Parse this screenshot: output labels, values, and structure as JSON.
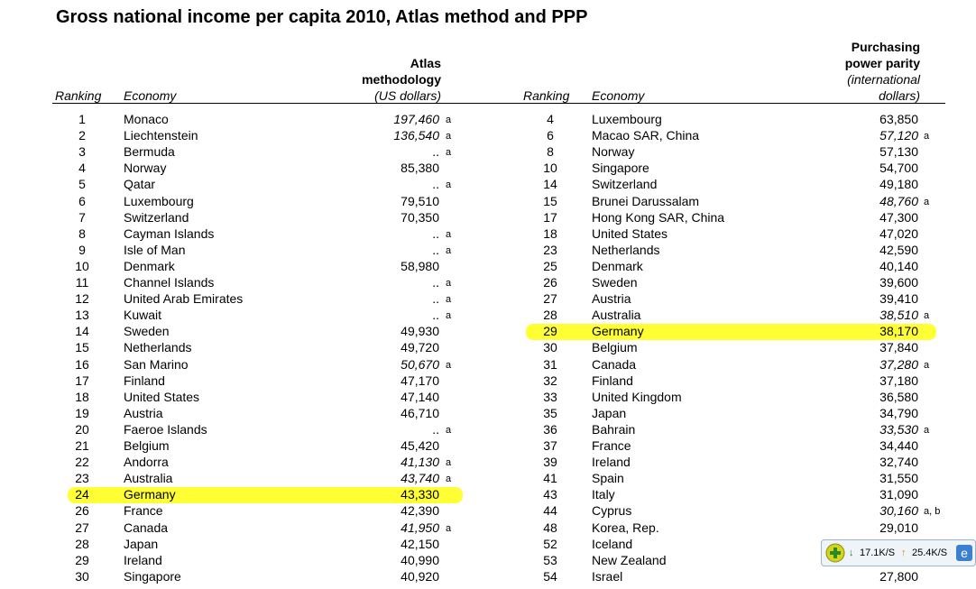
{
  "title": "Gross national income per capita 2010, Atlas method and PPP",
  "left": {
    "headers": {
      "ranking": "Ranking",
      "economy": "Economy",
      "value": [
        "Atlas",
        "methodology",
        "(US dollars)"
      ]
    },
    "rows": [
      {
        "ranking": 1,
        "economy": "Monaco",
        "value": "197,460",
        "note": "a",
        "italic": true
      },
      {
        "ranking": 2,
        "economy": "Liechtenstein",
        "value": "136,540",
        "note": "a",
        "italic": true
      },
      {
        "ranking": 3,
        "economy": "Bermuda",
        "value": "..",
        "note": "a"
      },
      {
        "ranking": 4,
        "economy": "Norway",
        "value": "85,380"
      },
      {
        "ranking": 5,
        "economy": "Qatar",
        "value": "..",
        "note": "a"
      },
      {
        "ranking": 6,
        "economy": "Luxembourg",
        "value": "79,510"
      },
      {
        "ranking": 7,
        "economy": "Switzerland",
        "value": "70,350"
      },
      {
        "ranking": 8,
        "economy": "Cayman Islands",
        "value": "..",
        "note": "a"
      },
      {
        "ranking": 9,
        "economy": "Isle of Man",
        "value": "..",
        "note": "a"
      },
      {
        "ranking": 10,
        "economy": "Denmark",
        "value": "58,980"
      },
      {
        "ranking": 11,
        "economy": "Channel Islands",
        "value": "..",
        "note": "a"
      },
      {
        "ranking": 12,
        "economy": "United Arab Emirates",
        "value": "..",
        "note": "a"
      },
      {
        "ranking": 13,
        "economy": "Kuwait",
        "value": "..",
        "note": "a"
      },
      {
        "ranking": 14,
        "economy": "Sweden",
        "value": "49,930"
      },
      {
        "ranking": 15,
        "economy": "Netherlands",
        "value": "49,720"
      },
      {
        "ranking": 16,
        "economy": "San Marino",
        "value": "50,670",
        "note": "a",
        "italic": true
      },
      {
        "ranking": 17,
        "economy": "Finland",
        "value": "47,170"
      },
      {
        "ranking": 18,
        "economy": "United States",
        "value": "47,140"
      },
      {
        "ranking": 19,
        "economy": "Austria",
        "value": "46,710"
      },
      {
        "ranking": 20,
        "economy": "Faeroe Islands",
        "value": "..",
        "note": "a"
      },
      {
        "ranking": 21,
        "economy": "Belgium",
        "value": "45,420"
      },
      {
        "ranking": 22,
        "economy": "Andorra",
        "value": "41,130",
        "note": "a",
        "italic": true
      },
      {
        "ranking": 23,
        "economy": "Australia",
        "value": "43,740",
        "note": "a",
        "italic": true
      },
      {
        "ranking": 24,
        "economy": "Germany",
        "value": "43,330",
        "highlight": true
      },
      {
        "ranking": 26,
        "economy": "France",
        "value": "42,390"
      },
      {
        "ranking": 27,
        "economy": "Canada",
        "value": "41,950",
        "note": "a",
        "italic": true
      },
      {
        "ranking": 28,
        "economy": "Japan",
        "value": "42,150"
      },
      {
        "ranking": 29,
        "economy": "Ireland",
        "value": "40,990"
      },
      {
        "ranking": 30,
        "economy": "Singapore",
        "value": "40,920"
      }
    ]
  },
  "right": {
    "headers": {
      "ranking": "Ranking",
      "economy": "Economy",
      "value": [
        "Purchasing",
        "power parity",
        "(international",
        "dollars)"
      ]
    },
    "rows": [
      {
        "ranking": 4,
        "economy": "Luxembourg",
        "value": "63,850"
      },
      {
        "ranking": 6,
        "economy": "Macao SAR, China",
        "value": "57,120",
        "note": "a",
        "italic": true
      },
      {
        "ranking": 8,
        "economy": "Norway",
        "value": "57,130"
      },
      {
        "ranking": 10,
        "economy": "Singapore",
        "value": "54,700"
      },
      {
        "ranking": 14,
        "economy": "Switzerland",
        "value": "49,180"
      },
      {
        "ranking": 15,
        "economy": "Brunei Darussalam",
        "value": "48,760",
        "note": "a",
        "italic": true
      },
      {
        "ranking": 17,
        "economy": "Hong Kong SAR, China",
        "value": "47,300"
      },
      {
        "ranking": 18,
        "economy": "United States",
        "value": "47,020"
      },
      {
        "ranking": 23,
        "economy": "Netherlands",
        "value": "42,590"
      },
      {
        "ranking": 25,
        "economy": "Denmark",
        "value": "40,140"
      },
      {
        "ranking": 26,
        "economy": "Sweden",
        "value": "39,600"
      },
      {
        "ranking": 27,
        "economy": "Austria",
        "value": "39,410"
      },
      {
        "ranking": 28,
        "economy": "Australia",
        "value": "38,510",
        "note": "a",
        "italic": true
      },
      {
        "ranking": 29,
        "economy": "Germany",
        "value": "38,170",
        "highlight": true
      },
      {
        "ranking": 30,
        "economy": "Belgium",
        "value": "37,840"
      },
      {
        "ranking": 31,
        "economy": "Canada",
        "value": "37,280",
        "note": "a",
        "italic": true
      },
      {
        "ranking": 32,
        "economy": "Finland",
        "value": "37,180"
      },
      {
        "ranking": 33,
        "economy": "United Kingdom",
        "value": "36,580"
      },
      {
        "ranking": 35,
        "economy": "Japan",
        "value": "34,790"
      },
      {
        "ranking": 36,
        "economy": "Bahrain",
        "value": "33,530",
        "note": "a",
        "italic": true
      },
      {
        "ranking": 37,
        "economy": "France",
        "value": "34,440"
      },
      {
        "ranking": 39,
        "economy": "Ireland",
        "value": "32,740"
      },
      {
        "ranking": 41,
        "economy": "Spain",
        "value": "31,550"
      },
      {
        "ranking": 43,
        "economy": "Italy",
        "value": "31,090"
      },
      {
        "ranking": 44,
        "economy": "Cyprus",
        "value": "30,160",
        "note": "a, b",
        "italic": true
      },
      {
        "ranking": 48,
        "economy": "Korea, Rep.",
        "value": "29,010"
      },
      {
        "ranking": 52,
        "economy": "Iceland"
      },
      {
        "ranking": 53,
        "economy": "New Zealand"
      },
      {
        "ranking": 54,
        "economy": "Israel",
        "value": "27,800"
      }
    ]
  },
  "widget": {
    "download": "17.1K/S",
    "upload": "25.4K/S"
  }
}
